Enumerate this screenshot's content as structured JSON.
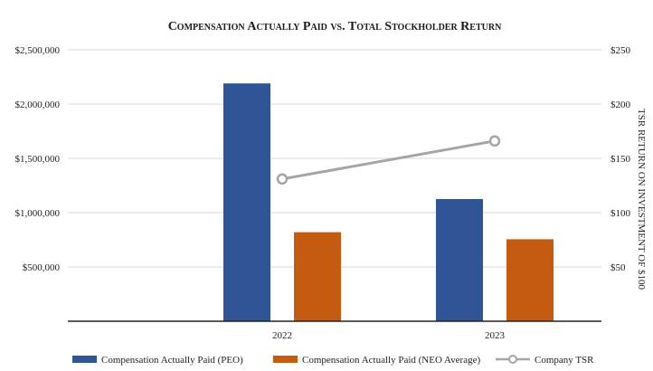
{
  "chart_data": {
    "type": "bar",
    "title": "Compensation Actually Paid vs. Total Stockholder Return",
    "categories": [
      "2022",
      "2023"
    ],
    "series": [
      {
        "name": "Compensation Actually Paid (PEO)",
        "type": "bar",
        "axis": "left",
        "color": "#2F5597",
        "values": [
          2190000,
          1125000
        ]
      },
      {
        "name": "Compensation Actually Paid (NEO Average)",
        "type": "bar",
        "axis": "left",
        "color": "#C55A11",
        "values": [
          820000,
          755000
        ]
      },
      {
        "name": "Company TSR",
        "type": "line",
        "axis": "right",
        "color": "#A5A5A5",
        "values": [
          131,
          166
        ]
      }
    ],
    "y_left": {
      "ylim": [
        0,
        2500000
      ],
      "ticks": [
        500000,
        1000000,
        1500000,
        2000000,
        2500000
      ],
      "tick_labels": [
        "$500,000",
        "$1,000,000",
        "$1,500,000",
        "$2,000,000",
        "$2,500,000"
      ]
    },
    "y_right": {
      "label": "TSR RETURN ON INVESTMENT OF $100",
      "ylim": [
        0,
        250
      ],
      "ticks": [
        50,
        100,
        150,
        200,
        250
      ],
      "tick_labels": [
        "$50",
        "$100",
        "$150",
        "$200",
        "$250"
      ]
    },
    "grid": true,
    "legend_position": "bottom"
  }
}
